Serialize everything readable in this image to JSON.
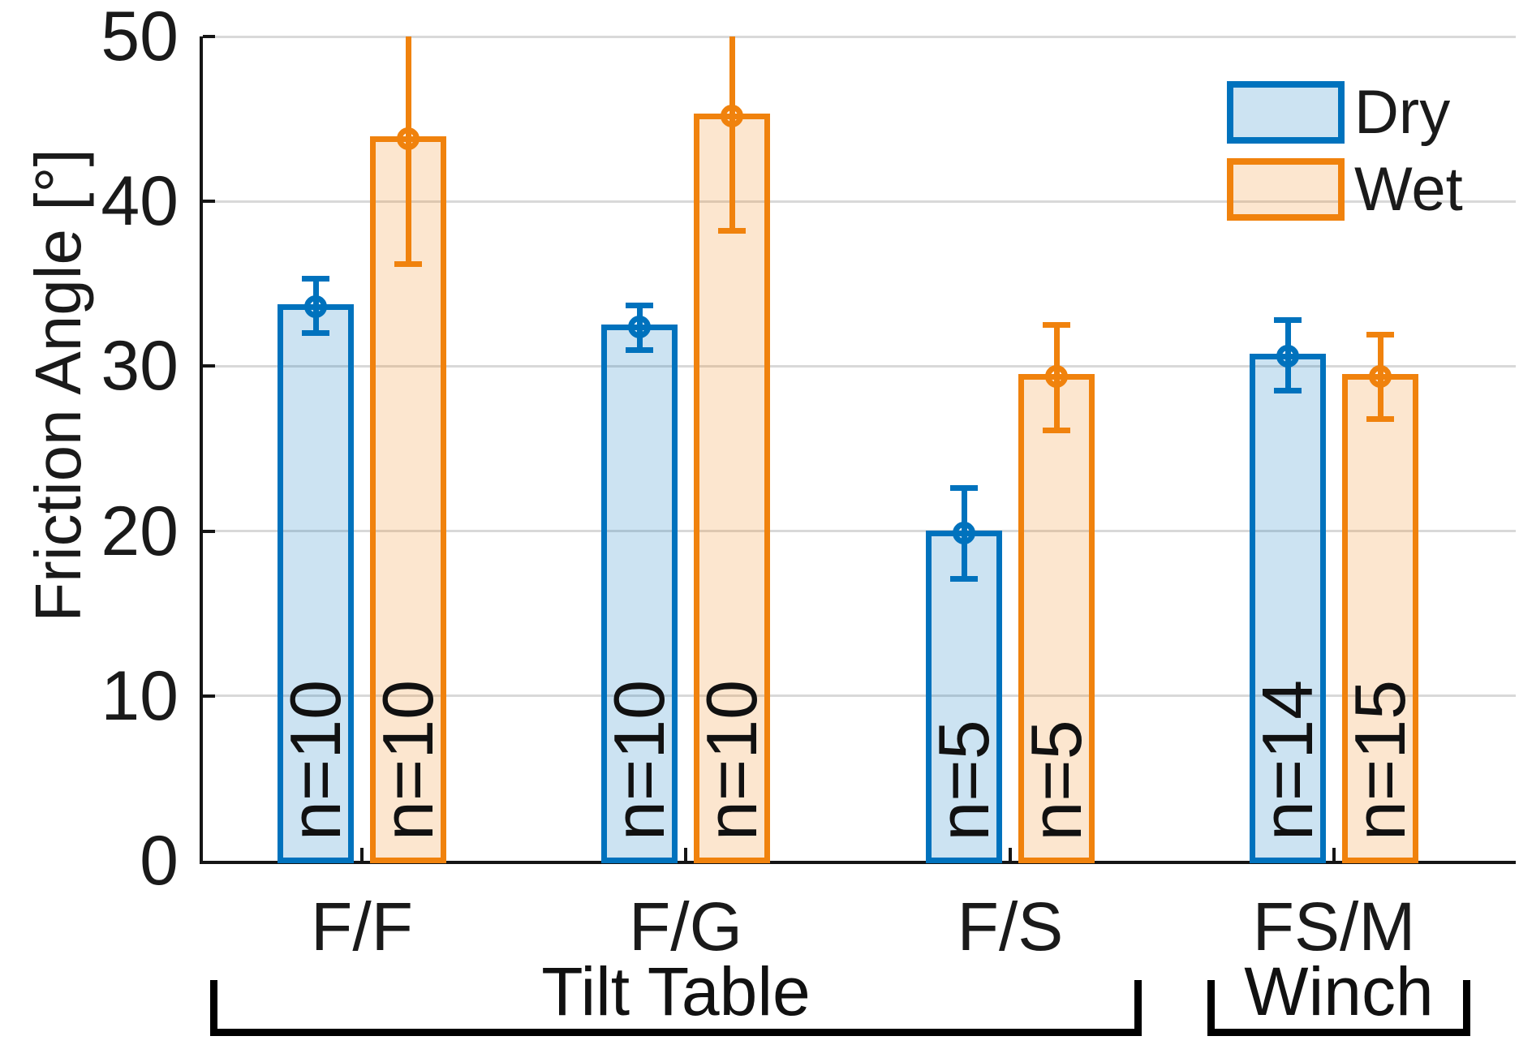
{
  "chart_data": {
    "type": "bar",
    "title": "",
    "xlabel": "",
    "ylabel": "Friction Angle [°]",
    "ylim": [
      0,
      50
    ],
    "yticks": [
      0,
      10,
      20,
      30,
      40,
      50
    ],
    "grid": "horizontal gridlines at each ytick, light gray",
    "legend": {
      "position": "top-right",
      "frame": false
    },
    "categories": [
      "F/F",
      "F/G",
      "F/S",
      "FS/M"
    ],
    "series": [
      {
        "name": "Dry",
        "color": "#0072BD",
        "fill_alpha": 0.2,
        "values": [
          33.6,
          32.4,
          19.9,
          30.6
        ],
        "err_lo": [
          32.0,
          31.0,
          17.1,
          28.5
        ],
        "err_hi": [
          35.3,
          33.7,
          22.6,
          32.8
        ],
        "err_hi_clipped": [
          false,
          false,
          false,
          false
        ],
        "n_labels": [
          "n=10",
          "n=10",
          "n=5",
          "n=14"
        ]
      },
      {
        "name": "Wet",
        "color": "#F0820D",
        "fill_alpha": 0.2,
        "values": [
          43.8,
          45.2,
          29.4,
          29.4
        ],
        "err_lo": [
          36.2,
          38.2,
          26.1,
          26.8
        ],
        "err_hi": [
          50,
          50,
          32.5,
          31.9
        ],
        "err_hi_clipped": [
          true,
          true,
          false,
          false
        ],
        "n_labels": [
          "n=10",
          "n=10",
          "n=5",
          "n=15"
        ]
      }
    ],
    "group_brackets": [
      {
        "label": "Tilt Table",
        "categories": [
          "F/F",
          "F/G",
          "F/S"
        ]
      },
      {
        "label": "Winch",
        "categories": [
          "FS/M"
        ]
      }
    ]
  }
}
